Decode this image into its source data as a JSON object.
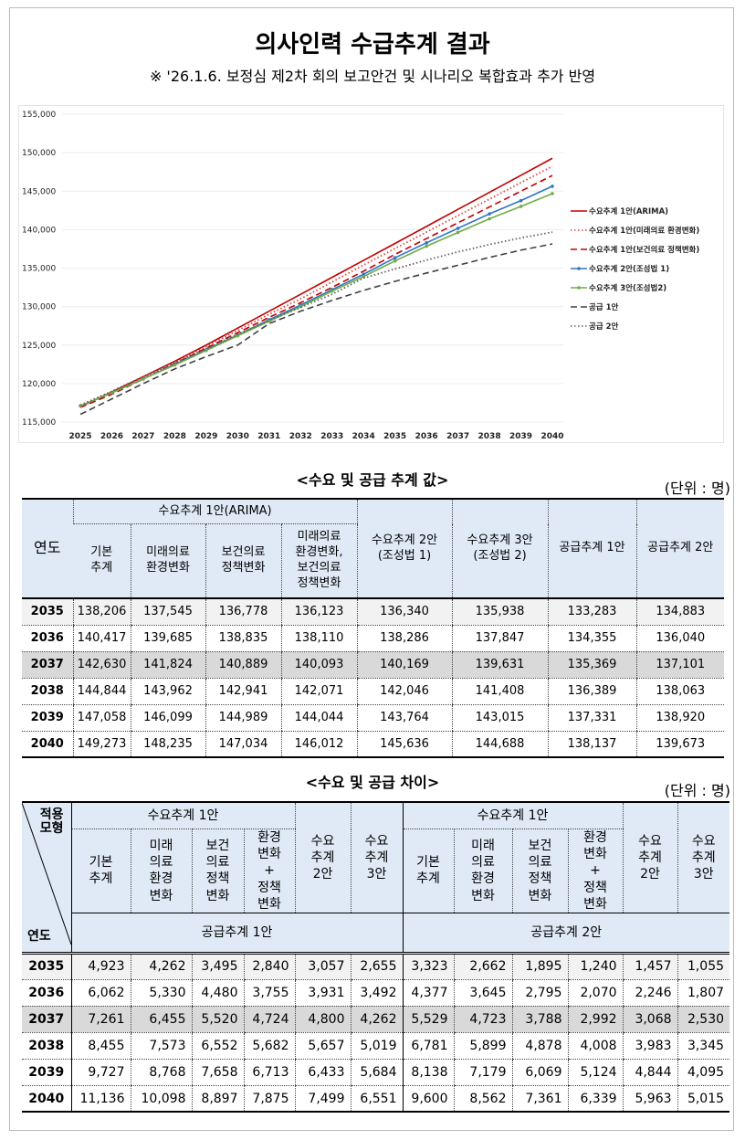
{
  "header": {
    "title": "의사인력 수급추계 결과",
    "subtitle": "※ '26.1.6. 보정심 제2차 회의 보고안건 및 시나리오 복합효과 추가 반영"
  },
  "chart_data": {
    "type": "line",
    "x": [
      2025,
      2026,
      2027,
      2028,
      2029,
      2030,
      2031,
      2032,
      2033,
      2034,
      2035,
      2036,
      2037,
      2038,
      2039,
      2040
    ],
    "ylim": [
      115000,
      155000
    ],
    "yticks": [
      "115,000",
      "120,000",
      "125,000",
      "130,000",
      "135,000",
      "140,000",
      "145,000",
      "150,000",
      "155,000"
    ],
    "grid": true,
    "legend_position": "right",
    "series": [
      {
        "name": "수요추계 1안(ARIMA)",
        "color": "#c00000",
        "style": "solid",
        "values": [
          117000,
          118900,
          120900,
          122900,
          125000,
          127200,
          129400,
          131600,
          133800,
          136000,
          138206,
          140417,
          142630,
          144844,
          147058,
          149273
        ]
      },
      {
        "name": "수요추계 1안(미래의료 환경변화)",
        "color": "#e04040",
        "style": "dotted",
        "values": [
          117000,
          118800,
          120800,
          122700,
          124800,
          126900,
          129000,
          131000,
          133200,
          135400,
          137545,
          139685,
          141824,
          143962,
          146099,
          148235
        ]
      },
      {
        "name": "수요추계 1안(보건의료 정책변화)",
        "color": "#c00000",
        "style": "dashed",
        "values": [
          116900,
          118600,
          120600,
          122600,
          124600,
          126600,
          128600,
          130500,
          132500,
          134600,
          136778,
          138835,
          140889,
          142941,
          144989,
          147034
        ]
      },
      {
        "name": "수요추계 2안(조성법 1)",
        "color": "#2e75c6",
        "style": "marker-line",
        "values": [
          117100,
          118800,
          120600,
          122500,
          124400,
          126300,
          128300,
          130200,
          132200,
          134200,
          136340,
          138286,
          140169,
          142046,
          143764,
          145636
        ]
      },
      {
        "name": "수요추계 3안(조성법2)",
        "color": "#70ad47",
        "style": "marker-line",
        "values": [
          117100,
          118800,
          120600,
          122400,
          124300,
          126200,
          128100,
          130000,
          132000,
          133900,
          135938,
          137847,
          139631,
          141408,
          143015,
          144688
        ]
      },
      {
        "name": "공급 1안",
        "color": "#404040",
        "style": "dashed",
        "values": [
          116000,
          118000,
          120000,
          121900,
          123500,
          125000,
          127800,
          129400,
          130800,
          132100,
          133283,
          134355,
          135369,
          136389,
          137331,
          138137
        ]
      },
      {
        "name": "공급 2안",
        "color": "#606060",
        "style": "dotted",
        "values": [
          117200,
          119000,
          120900,
          122700,
          124500,
          126400,
          128200,
          129900,
          131600,
          133700,
          134883,
          136040,
          137101,
          138063,
          138920,
          139673
        ]
      }
    ]
  },
  "table1": {
    "title": "<수요 및 공급 추계 값>",
    "unit": "(단위 : 명)",
    "year_header": "연도",
    "group_header": "수요추계 1안(ARIMA)",
    "sub_headers": [
      "기본\n추계",
      "미래의료\n환경변화",
      "보건의료\n정책변화",
      "미래의료\n환경변화,\n보건의료\n정책변화"
    ],
    "other_headers": [
      "수요추계 2안\n(조성법 1)",
      "수요추계 3안\n(조성법 2)",
      "공급추계 1안",
      "공급추계 2안"
    ],
    "rows": [
      {
        "year": "2035",
        "values": [
          "138,206",
          "137,545",
          "136,778",
          "136,123",
          "136,340",
          "135,938",
          "133,283",
          "134,883"
        ]
      },
      {
        "year": "2036",
        "values": [
          "140,417",
          "139,685",
          "138,835",
          "138,110",
          "138,286",
          "137,847",
          "134,355",
          "136,040"
        ]
      },
      {
        "year": "2037",
        "values": [
          "142,630",
          "141,824",
          "140,889",
          "140,093",
          "140,169",
          "139,631",
          "135,369",
          "137,101"
        ]
      },
      {
        "year": "2038",
        "values": [
          "144,844",
          "143,962",
          "142,941",
          "142,071",
          "142,046",
          "141,408",
          "136,389",
          "138,063"
        ]
      },
      {
        "year": "2039",
        "values": [
          "147,058",
          "146,099",
          "144,989",
          "144,044",
          "143,764",
          "143,015",
          "137,331",
          "138,920"
        ]
      },
      {
        "year": "2040",
        "values": [
          "149,273",
          "148,235",
          "147,034",
          "146,012",
          "145,636",
          "144,688",
          "138,137",
          "139,673"
        ]
      }
    ]
  },
  "table2": {
    "title": "<수요 및 공급 차이>",
    "unit": "(단위 : 명)",
    "corner_top": "적용\n모형",
    "corner_bottom": "연도",
    "group_header": "수요추계 1안",
    "sub_headers": [
      "기본\n추계",
      "미래\n의료\n환경\n변화",
      "보건\n의료\n정책\n변화",
      "환경\n변화\n+\n정책\n변화"
    ],
    "other_headers": [
      "수요\n추계\n2안",
      "수요\n추계\n3안"
    ],
    "supply_headers": [
      "공급추계 1안",
      "공급추계 2안"
    ],
    "rows": [
      {
        "year": "2035",
        "values": [
          "4,923",
          "4,262",
          "3,495",
          "2,840",
          "3,057",
          "2,655",
          "3,323",
          "2,662",
          "1,895",
          "1,240",
          "1,457",
          "1,055"
        ]
      },
      {
        "year": "2036",
        "values": [
          "6,062",
          "5,330",
          "4,480",
          "3,755",
          "3,931",
          "3,492",
          "4,377",
          "3,645",
          "2,795",
          "2,070",
          "2,246",
          "1,807"
        ]
      },
      {
        "year": "2037",
        "values": [
          "7,261",
          "6,455",
          "5,520",
          "4,724",
          "4,800",
          "4,262",
          "5,529",
          "4,723",
          "3,788",
          "2,992",
          "3,068",
          "2,530"
        ]
      },
      {
        "year": "2038",
        "values": [
          "8,455",
          "7,573",
          "6,552",
          "5,682",
          "5,657",
          "5,019",
          "6,781",
          "5,899",
          "4,878",
          "4,008",
          "3,983",
          "3,345"
        ]
      },
      {
        "year": "2039",
        "values": [
          "9,727",
          "8,768",
          "7,658",
          "6,713",
          "6,433",
          "5,684",
          "8,138",
          "7,179",
          "6,069",
          "5,124",
          "4,844",
          "4,095"
        ]
      },
      {
        "year": "2040",
        "values": [
          "11,136",
          "10,098",
          "8,897",
          "7,875",
          "7,499",
          "6,551",
          "9,600",
          "8,562",
          "7,361",
          "6,339",
          "5,963",
          "5,015"
        ]
      }
    ]
  }
}
